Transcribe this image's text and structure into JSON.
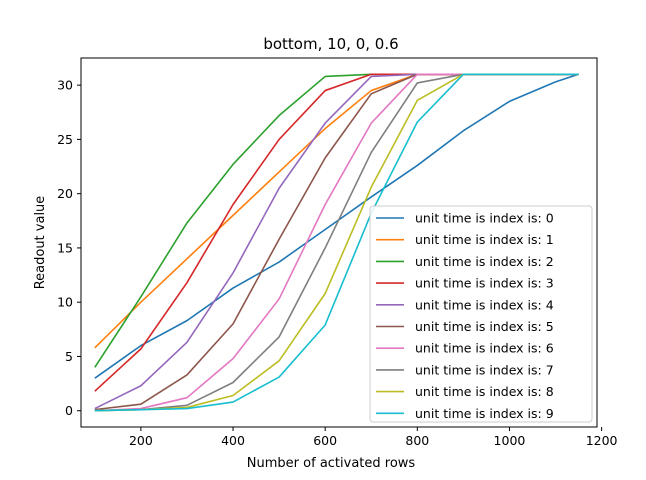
{
  "chart_data": {
    "type": "line",
    "title": "bottom, 10, 0, 0.6",
    "xlabel": "Number of activated rows",
    "ylabel": "Readout value",
    "xlim": [
      70,
      1190
    ],
    "ylim": [
      -1.5,
      32.5
    ],
    "xticks": [
      200,
      400,
      600,
      800,
      1000,
      1200
    ],
    "yticks": [
      0,
      5,
      10,
      15,
      20,
      25,
      30
    ],
    "grid": false,
    "legend_position": "lower-right",
    "series": [
      {
        "name": "unit time is index is: 0",
        "color": "#1f77b4",
        "x": [
          100,
          200,
          300,
          400,
          500,
          600,
          700,
          800,
          900,
          1000,
          1100,
          1150
        ],
        "y": [
          3.0,
          6.0,
          8.3,
          11.3,
          13.7,
          16.7,
          19.7,
          22.6,
          25.8,
          28.5,
          30.3,
          31.0
        ]
      },
      {
        "name": "unit time is index is: 1",
        "color": "#ff7f0e",
        "x": [
          100,
          200,
          300,
          400,
          500,
          600,
          700,
          800,
          900,
          1000,
          1100,
          1150
        ],
        "y": [
          5.8,
          10.0,
          14.0,
          18.0,
          22.0,
          26.0,
          29.5,
          31.0,
          31.0,
          31.0,
          31.0,
          31.0
        ]
      },
      {
        "name": "unit time is index is: 2",
        "color": "#2ca02c",
        "x": [
          100,
          200,
          300,
          400,
          500,
          600,
          700,
          800,
          900,
          1000,
          1100,
          1150
        ],
        "y": [
          4.0,
          10.5,
          17.3,
          22.7,
          27.2,
          30.8,
          31.0,
          31.0,
          31.0,
          31.0,
          31.0,
          31.0
        ]
      },
      {
        "name": "unit time is index is: 3",
        "color": "#d62728",
        "x": [
          100,
          200,
          300,
          400,
          500,
          600,
          700,
          800,
          900,
          1000,
          1100,
          1150
        ],
        "y": [
          1.8,
          5.7,
          11.8,
          19.0,
          25.0,
          29.5,
          31.0,
          31.0,
          31.0,
          31.0,
          31.0,
          31.0
        ]
      },
      {
        "name": "unit time is index is: 4",
        "color": "#9467bd",
        "x": [
          100,
          200,
          300,
          400,
          500,
          600,
          700,
          800,
          900,
          1000,
          1100,
          1150
        ],
        "y": [
          0.2,
          2.3,
          6.3,
          12.7,
          20.5,
          26.5,
          30.8,
          31.0,
          31.0,
          31.0,
          31.0,
          31.0
        ]
      },
      {
        "name": "unit time is index is: 5",
        "color": "#8c564b",
        "x": [
          100,
          200,
          300,
          400,
          500,
          600,
          700,
          800,
          900,
          1000,
          1100,
          1150
        ],
        "y": [
          0.1,
          0.6,
          3.3,
          8.0,
          15.8,
          23.3,
          29.2,
          31.0,
          31.0,
          31.0,
          31.0,
          31.0
        ]
      },
      {
        "name": "unit time is index is: 6",
        "color": "#e377c2",
        "x": [
          100,
          200,
          300,
          400,
          500,
          600,
          700,
          800,
          900,
          1000,
          1100,
          1150
        ],
        "y": [
          0.0,
          0.2,
          1.2,
          4.8,
          10.3,
          19.0,
          26.5,
          31.0,
          31.0,
          31.0,
          31.0,
          31.0
        ]
      },
      {
        "name": "unit time is index is: 7",
        "color": "#7f7f7f",
        "x": [
          100,
          200,
          300,
          400,
          500,
          600,
          700,
          800,
          900,
          1000,
          1100,
          1150
        ],
        "y": [
          0.0,
          0.1,
          0.5,
          2.6,
          6.8,
          15.0,
          23.8,
          30.2,
          31.0,
          31.0,
          31.0,
          31.0
        ]
      },
      {
        "name": "unit time is index is: 8",
        "color": "#bcbd22",
        "x": [
          100,
          200,
          300,
          400,
          500,
          600,
          700,
          800,
          900,
          1000,
          1100,
          1150
        ],
        "y": [
          0.0,
          0.1,
          0.3,
          1.4,
          4.6,
          10.8,
          20.6,
          28.6,
          31.0,
          31.0,
          31.0,
          31.0
        ]
      },
      {
        "name": "unit time is index is: 9",
        "color": "#17becf",
        "x": [
          100,
          200,
          300,
          400,
          500,
          600,
          700,
          800,
          900,
          1000,
          1100,
          1150
        ],
        "y": [
          0.0,
          0.1,
          0.2,
          0.8,
          3.1,
          7.9,
          18.2,
          26.6,
          31.0,
          31.0,
          31.0,
          31.0
        ]
      }
    ]
  }
}
